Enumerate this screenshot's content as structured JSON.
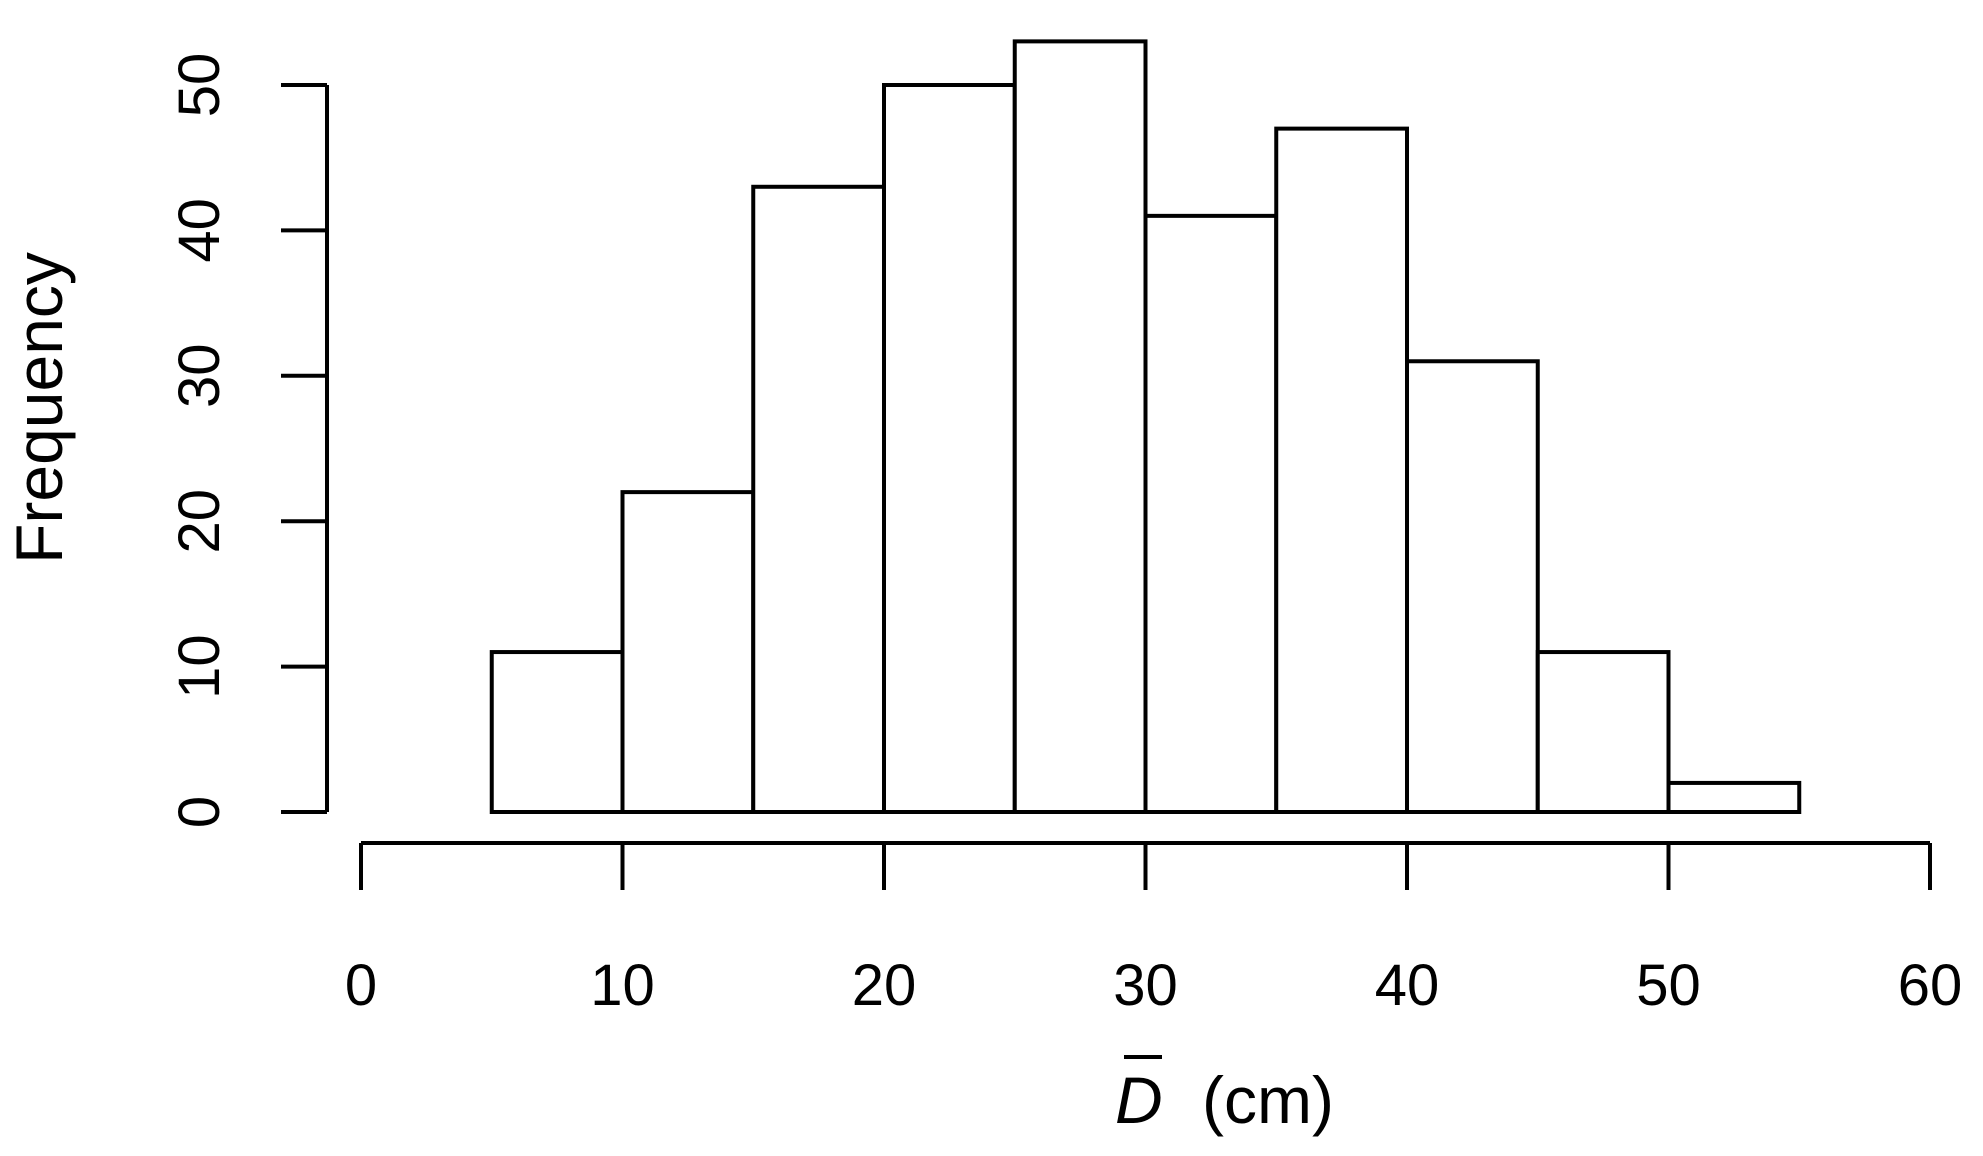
{
  "chart_data": {
    "type": "bar",
    "bin_edges": [
      5,
      10,
      15,
      20,
      25,
      30,
      35,
      40,
      45,
      50,
      55
    ],
    "values": [
      11,
      22,
      43,
      50,
      53,
      41,
      47,
      31,
      11,
      2
    ],
    "xlabel": {
      "symbol": "D",
      "unit": "(cm)"
    },
    "ylabel": "Frequency",
    "xlim": [
      0,
      60
    ],
    "ylim": [
      0,
      50
    ],
    "x_ticks": [
      0,
      10,
      20,
      30,
      40,
      50,
      60
    ],
    "y_ticks": [
      0,
      10,
      20,
      30,
      40,
      50
    ],
    "x_tick_labels": [
      "0",
      "10",
      "20",
      "30",
      "40",
      "50",
      "60"
    ],
    "y_tick_labels": [
      "0",
      "10",
      "20",
      "30",
      "40",
      "50"
    ],
    "grid": false,
    "legend": "none",
    "colors": {
      "bar_fill": "#ffffff",
      "bar_stroke": "#000000"
    }
  }
}
